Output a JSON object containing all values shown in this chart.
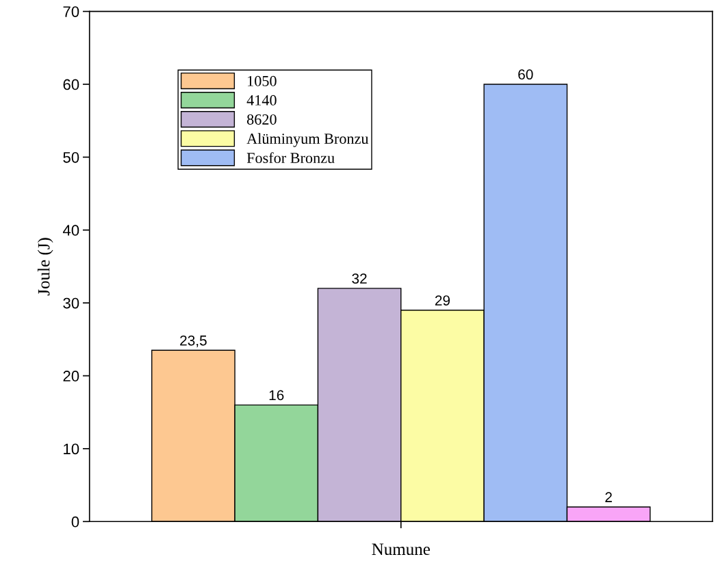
{
  "chart_data": {
    "type": "bar",
    "xlabel": "Numune",
    "ylabel": "Joule (J)",
    "categories": [
      null
    ],
    "series": [
      {
        "name": "1050",
        "color": "#fdc891",
        "values": [
          23.5
        ],
        "value_labels": [
          "23,5"
        ]
      },
      {
        "name": "4140",
        "color": "#93d69a",
        "values": [
          16
        ],
        "value_labels": [
          "16"
        ]
      },
      {
        "name": "8620",
        "color": "#c4b4d6",
        "values": [
          32
        ],
        "value_labels": [
          "32"
        ]
      },
      {
        "name": "Alüminyum Bronzu",
        "color": "#fcfca4",
        "values": [
          29
        ],
        "value_labels": [
          "29"
        ]
      },
      {
        "name": "Fosfor Bronzu",
        "color": "#9fbcf4",
        "values": [
          60
        ],
        "value_labels": [
          "60"
        ]
      },
      {
        "color": "#f9a5f7",
        "values": [
          2
        ],
        "value_labels": [
          "2"
        ]
      }
    ],
    "ylim": [
      0,
      70
    ],
    "yticks": [
      0,
      10,
      20,
      30,
      40,
      50,
      60,
      70
    ],
    "legend": "top left",
    "grid": false
  }
}
